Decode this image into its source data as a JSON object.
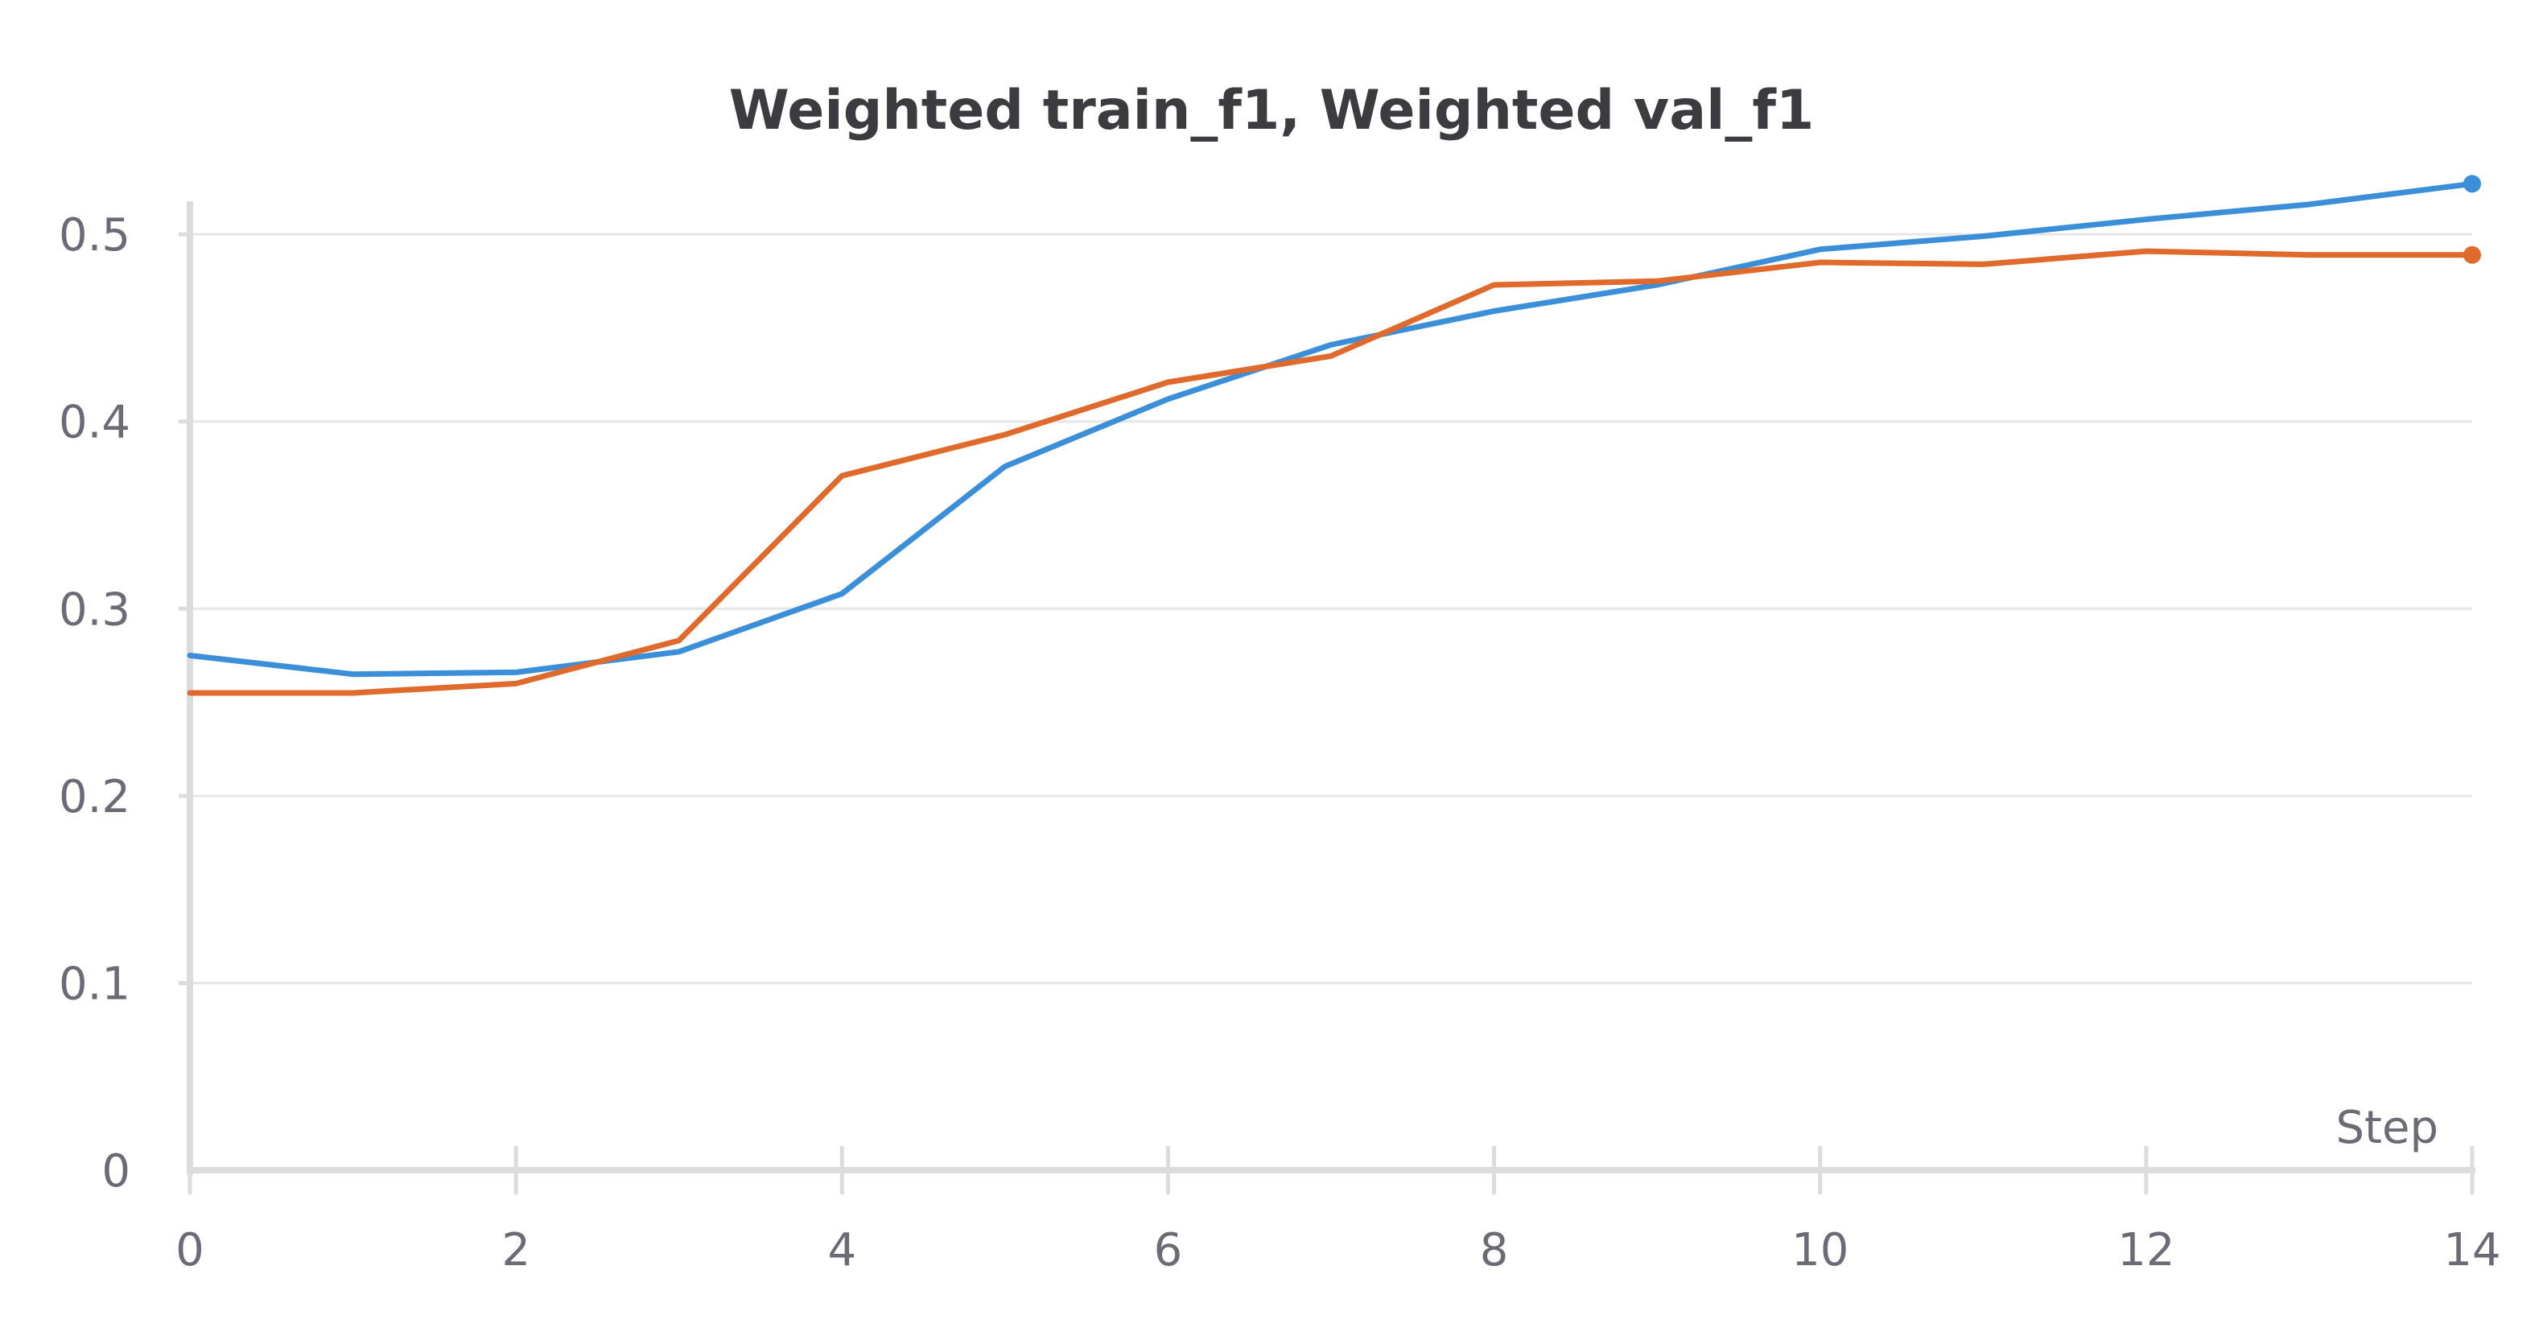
{
  "chart_data": {
    "type": "line",
    "title": "Weighted train_f1, Weighted val_f1",
    "xlabel": "Step",
    "ylabel": "",
    "xlim": [
      0,
      14
    ],
    "ylim": [
      0,
      0.5263
    ],
    "grid": true,
    "x_ticks": [
      0,
      2,
      4,
      6,
      8,
      10,
      12,
      14
    ],
    "y_ticks": [
      0,
      0.1,
      0.2,
      0.3,
      0.4,
      0.5
    ],
    "x_tick_labels": [
      "0",
      "2",
      "4",
      "6",
      "8",
      "10",
      "12",
      "14"
    ],
    "y_tick_labels": [
      "0",
      "0.1",
      "0.2",
      "0.3",
      "0.4",
      "0.5"
    ],
    "x": [
      0,
      1,
      2,
      3,
      4,
      5,
      6,
      7,
      8,
      9,
      10,
      11,
      12,
      13,
      14
    ],
    "series": [
      {
        "color": "#3b8fd9",
        "values": [
          0.275,
          0.265,
          0.266,
          0.277,
          0.308,
          0.376,
          0.412,
          0.441,
          0.459,
          0.473,
          0.492,
          0.499,
          0.508,
          0.516,
          0.527
        ]
      },
      {
        "color": "#e06a2c",
        "values": [
          0.255,
          0.255,
          0.26,
          0.283,
          0.371,
          0.393,
          0.421,
          0.435,
          0.473,
          0.475,
          0.485,
          0.484,
          0.491,
          0.489,
          0.489
        ]
      }
    ]
  }
}
